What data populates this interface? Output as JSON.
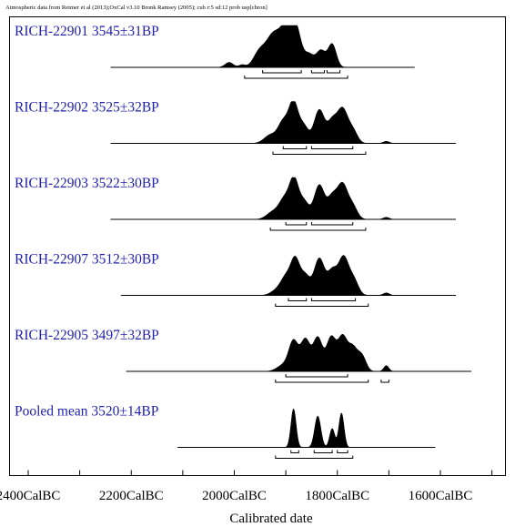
{
  "header": "Atmospheric data from Reimer et al (2013);OxCal v3.10 Bronk Ramsey (2005); cub r:5 sd:12 prob usp[chron]",
  "chart_data": {
    "type": "area",
    "xlabel": "Calibrated date",
    "tick_labels": [
      "2400CalBC",
      "2200CalBC",
      "2000CalBC",
      "1800CalBC",
      "1600CalBC"
    ],
    "tick_values": [
      2400,
      2200,
      2000,
      1800,
      1600
    ],
    "x_range": [
      2475,
      1515
    ],
    "series": [
      {
        "lab_code": "RICH-22901",
        "age": "3545±31BP",
        "range": [
          2240,
          1650
        ],
        "peaks": [
          {
            "x": 2010,
            "h": 0.12,
            "w": 8
          },
          {
            "x": 1985,
            "h": 0.06,
            "w": 6
          },
          {
            "x": 1950,
            "h": 0.4,
            "w": 12
          },
          {
            "x": 1925,
            "h": 0.7,
            "w": 12
          },
          {
            "x": 1900,
            "h": 0.92,
            "w": 12
          },
          {
            "x": 1880,
            "h": 0.85,
            "w": 10
          },
          {
            "x": 1855,
            "h": 0.3,
            "w": 9
          },
          {
            "x": 1832,
            "h": 0.4,
            "w": 9
          },
          {
            "x": 1810,
            "h": 0.55,
            "w": 8
          }
        ],
        "ranges_inner": [
          [
            1945,
            1870
          ],
          [
            1850,
            1825
          ],
          [
            1820,
            1795
          ]
        ],
        "ranges_outer": [
          [
            1980,
            1780
          ]
        ]
      },
      {
        "lab_code": "RICH-22902",
        "age": "3525±32BP",
        "range": [
          2240,
          1570
        ],
        "peaks": [
          {
            "x": 1930,
            "h": 0.2,
            "w": 12
          },
          {
            "x": 1905,
            "h": 0.5,
            "w": 10
          },
          {
            "x": 1885,
            "h": 0.95,
            "w": 9
          },
          {
            "x": 1865,
            "h": 0.4,
            "w": 9
          },
          {
            "x": 1835,
            "h": 0.8,
            "w": 10
          },
          {
            "x": 1810,
            "h": 0.5,
            "w": 9
          },
          {
            "x": 1790,
            "h": 0.8,
            "w": 10
          },
          {
            "x": 1770,
            "h": 0.3,
            "w": 9
          },
          {
            "x": 1705,
            "h": 0.05,
            "w": 6
          }
        ],
        "ranges_inner": [
          [
            1905,
            1860
          ],
          [
            1850,
            1770
          ]
        ],
        "ranges_outer": [
          [
            1925,
            1745
          ]
        ]
      },
      {
        "lab_code": "RICH-22903",
        "age": "3522±30BP",
        "range": [
          2240,
          1570
        ],
        "peaks": [
          {
            "x": 1925,
            "h": 0.18,
            "w": 12
          },
          {
            "x": 1903,
            "h": 0.45,
            "w": 10
          },
          {
            "x": 1884,
            "h": 0.93,
            "w": 9
          },
          {
            "x": 1864,
            "h": 0.4,
            "w": 9
          },
          {
            "x": 1835,
            "h": 0.82,
            "w": 10
          },
          {
            "x": 1810,
            "h": 0.5,
            "w": 9
          },
          {
            "x": 1790,
            "h": 0.82,
            "w": 10
          },
          {
            "x": 1770,
            "h": 0.3,
            "w": 9
          },
          {
            "x": 1705,
            "h": 0.05,
            "w": 6
          }
        ],
        "ranges_inner": [
          [
            1900,
            1860
          ],
          [
            1850,
            1770
          ]
        ],
        "ranges_outer": [
          [
            1930,
            1745
          ]
        ]
      },
      {
        "lab_code": "RICH-22907",
        "age": "3512±30BP",
        "range": [
          2220,
          1570
        ],
        "peaks": [
          {
            "x": 1915,
            "h": 0.15,
            "w": 12
          },
          {
            "x": 1900,
            "h": 0.35,
            "w": 9
          },
          {
            "x": 1882,
            "h": 0.85,
            "w": 9
          },
          {
            "x": 1862,
            "h": 0.45,
            "w": 9
          },
          {
            "x": 1835,
            "h": 0.88,
            "w": 10
          },
          {
            "x": 1810,
            "h": 0.55,
            "w": 9
          },
          {
            "x": 1788,
            "h": 0.9,
            "w": 10
          },
          {
            "x": 1768,
            "h": 0.35,
            "w": 9
          },
          {
            "x": 1705,
            "h": 0.06,
            "w": 6
          }
        ],
        "ranges_inner": [
          [
            1895,
            1860
          ],
          [
            1850,
            1765
          ]
        ],
        "ranges_outer": [
          [
            1920,
            1740
          ]
        ]
      },
      {
        "lab_code": "RICH-22905",
        "age": "3497±32BP",
        "range": [
          2210,
          1540
        ],
        "peaks": [
          {
            "x": 1905,
            "h": 0.15,
            "w": 12
          },
          {
            "x": 1885,
            "h": 0.7,
            "w": 9
          },
          {
            "x": 1862,
            "h": 0.75,
            "w": 9
          },
          {
            "x": 1838,
            "h": 0.8,
            "w": 9
          },
          {
            "x": 1812,
            "h": 0.8,
            "w": 9
          },
          {
            "x": 1790,
            "h": 0.8,
            "w": 9
          },
          {
            "x": 1770,
            "h": 0.55,
            "w": 9
          },
          {
            "x": 1752,
            "h": 0.35,
            "w": 8
          },
          {
            "x": 1705,
            "h": 0.14,
            "w": 5
          }
        ],
        "ranges_inner": [
          [
            1900,
            1780
          ]
        ],
        "ranges_outer": [
          [
            1920,
            1740
          ],
          [
            1715,
            1700
          ]
        ]
      },
      {
        "lab_code": "Pooled mean",
        "age": "3520±14BP",
        "range": [
          2110,
          1610
        ],
        "peaks": [
          {
            "x": 1885,
            "h": 0.92,
            "w": 5
          },
          {
            "x": 1838,
            "h": 0.75,
            "w": 6
          },
          {
            "x": 1810,
            "h": 0.45,
            "w": 5
          },
          {
            "x": 1792,
            "h": 0.82,
            "w": 5
          }
        ],
        "ranges_inner": [
          [
            1890,
            1875
          ],
          [
            1845,
            1810
          ],
          [
            1800,
            1780
          ]
        ],
        "ranges_outer": [
          [
            1920,
            1770
          ]
        ]
      }
    ]
  }
}
